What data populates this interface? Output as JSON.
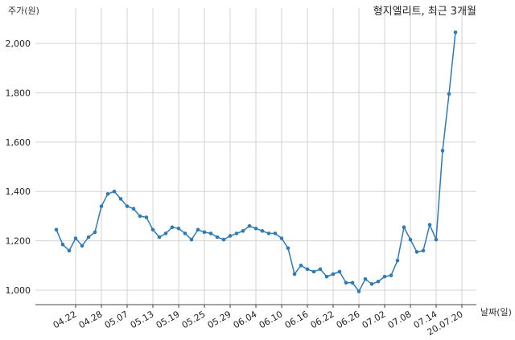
{
  "chart_data": {
    "type": "line",
    "title": "형지엘리트, 최근 3개월",
    "ylabel": "주가(원)",
    "xlabel": "날짜(일)",
    "ylim": [
      960,
      2090
    ],
    "yticks": [
      1000,
      1200,
      1400,
      1600,
      1800,
      2000
    ],
    "ytick_labels": [
      "1,000",
      "1,200",
      "1,400",
      "1,600",
      "1,800",
      "2,000"
    ],
    "xtick_labels": [
      "04.22",
      "04.28",
      "05.07",
      "05.13",
      "05.19",
      "05.25",
      "05.29",
      "06.04",
      "06.10",
      "06.16",
      "06.22",
      "06.26",
      "07.02",
      "07.08",
      "07.14",
      "20.07.20"
    ],
    "xtick_index": [
      3,
      7,
      11,
      15,
      19,
      23,
      27,
      31,
      35,
      39,
      43,
      47,
      51,
      55,
      59,
      63
    ],
    "grid": true,
    "series": [
      {
        "color": "#2f7bb5",
        "values": [
          1245,
          1185,
          1160,
          1210,
          1180,
          1215,
          1235,
          1340,
          1390,
          1400,
          1370,
          1340,
          1330,
          1300,
          1295,
          1245,
          1215,
          1230,
          1255,
          1250,
          1230,
          1205,
          1245,
          1235,
          1230,
          1215,
          1205,
          1220,
          1230,
          1240,
          1260,
          1250,
          1240,
          1230,
          1230,
          1210,
          1170,
          1065,
          1100,
          1085,
          1075,
          1085,
          1055,
          1065,
          1075,
          1030,
          1030,
          995,
          1045,
          1025,
          1035,
          1055,
          1060,
          1120,
          1255,
          1205,
          1155,
          1160,
          1265,
          1205,
          1565,
          1795,
          2045
        ]
      }
    ]
  }
}
